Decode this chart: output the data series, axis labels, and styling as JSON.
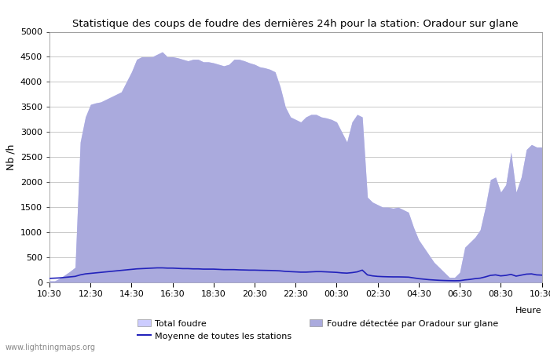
{
  "title": "Statistique des coups de foudre des dernières 24h pour la station: Oradour sur glane",
  "ylabel": "Nb /h",
  "xlabel_right": "Heure",
  "watermark": "www.lightningmaps.org",
  "ylim": [
    0,
    5000
  ],
  "yticks": [
    0,
    500,
    1000,
    1500,
    2000,
    2500,
    3000,
    3500,
    4000,
    4500,
    5000
  ],
  "xtick_labels": [
    "10:30",
    "12:30",
    "14:30",
    "16:30",
    "18:30",
    "20:30",
    "22:30",
    "00:30",
    "02:30",
    "04:30",
    "06:30",
    "08:30",
    "10:30"
  ],
  "legend": {
    "total_foudre_color": "#ccccff",
    "total_foudre_label": "Total foudre",
    "moyenne_color": "#2222bb",
    "moyenne_label": "Moyenne de toutes les stations",
    "detected_color": "#aaaadd",
    "detected_label": "Foudre détectée par Oradour sur glane"
  },
  "background_color": "#ffffff",
  "grid_color": "#c8c8c8",
  "fill_total_color": "#ccccff",
  "fill_detected_color": "#aaaadd",
  "line_mean_color": "#2222bb",
  "time_points_n": 97,
  "total_foudre": [
    30,
    30,
    80,
    150,
    220,
    300,
    2800,
    3300,
    3550,
    3580,
    3600,
    3650,
    3700,
    3750,
    3800,
    4000,
    4200,
    4450,
    4500,
    4500,
    4500,
    4550,
    4600,
    4500,
    4500,
    4480,
    4450,
    4420,
    4450,
    4450,
    4400,
    4400,
    4380,
    4350,
    4320,
    4350,
    4450,
    4450,
    4420,
    4380,
    4350,
    4300,
    4280,
    4250,
    4200,
    3900,
    3500,
    3300,
    3250,
    3200,
    3300,
    3350,
    3350,
    3300,
    3280,
    3250,
    3200,
    3000,
    2800,
    3200,
    3350,
    3300,
    1700,
    1600,
    1550,
    1500,
    1500,
    1480,
    1500,
    1450,
    1400,
    1100,
    850,
    700,
    550,
    400,
    300,
    200,
    100,
    100,
    200,
    700,
    800,
    900,
    1050,
    1500,
    2050,
    2100,
    1800,
    1950,
    2600,
    1800,
    2100,
    2650,
    2750,
    2700,
    2700
  ],
  "detected_foudre": [
    30,
    30,
    80,
    150,
    220,
    300,
    2800,
    3300,
    3550,
    3580,
    3600,
    3650,
    3700,
    3750,
    3800,
    4000,
    4200,
    4450,
    4500,
    4500,
    4500,
    4550,
    4600,
    4500,
    4500,
    4480,
    4450,
    4420,
    4450,
    4450,
    4400,
    4400,
    4380,
    4350,
    4320,
    4350,
    4450,
    4450,
    4420,
    4380,
    4350,
    4300,
    4280,
    4250,
    4200,
    3900,
    3500,
    3300,
    3250,
    3200,
    3300,
    3350,
    3350,
    3300,
    3280,
    3250,
    3200,
    3000,
    2800,
    3200,
    3350,
    3300,
    1700,
    1600,
    1550,
    1500,
    1500,
    1480,
    1500,
    1450,
    1400,
    1100,
    850,
    700,
    550,
    400,
    300,
    200,
    100,
    100,
    200,
    700,
    800,
    900,
    1050,
    1500,
    2050,
    2100,
    1800,
    1950,
    2600,
    1800,
    2100,
    2650,
    2750,
    2700,
    2700
  ],
  "mean_line": [
    80,
    85,
    90,
    100,
    110,
    120,
    150,
    170,
    180,
    190,
    200,
    210,
    220,
    230,
    240,
    250,
    260,
    270,
    275,
    280,
    285,
    290,
    290,
    285,
    285,
    280,
    275,
    275,
    270,
    270,
    265,
    265,
    265,
    260,
    255,
    255,
    255,
    250,
    248,
    245,
    245,
    242,
    240,
    238,
    235,
    230,
    220,
    215,
    210,
    205,
    205,
    210,
    215,
    215,
    210,
    205,
    200,
    190,
    185,
    195,
    210,
    245,
    150,
    130,
    120,
    115,
    112,
    110,
    110,
    108,
    105,
    90,
    75,
    65,
    55,
    48,
    42,
    38,
    35,
    33,
    35,
    50,
    60,
    75,
    85,
    110,
    140,
    150,
    130,
    140,
    160,
    125,
    145,
    165,
    170,
    150,
    145
  ]
}
